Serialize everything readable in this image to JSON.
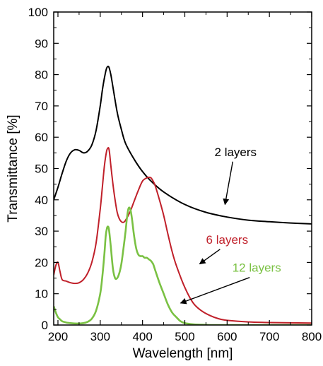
{
  "chart_data": {
    "type": "line",
    "xlabel": "Wavelength [nm]",
    "ylabel": "Transmittance [%]",
    "xlim": [
      190,
      800
    ],
    "ylim": [
      0,
      100
    ],
    "x_ticks": [
      200,
      300,
      400,
      500,
      600,
      700,
      800
    ],
    "y_ticks": [
      0,
      10,
      20,
      30,
      40,
      50,
      60,
      70,
      80,
      90,
      100
    ],
    "grid": false,
    "legend": "none",
    "series": [
      {
        "name": "2 layers",
        "color": "#000000",
        "label_at": [
          620,
          54
        ],
        "arrow_to": [
          595,
          38.5
        ],
        "x": [
          190,
          200,
          210,
          220,
          230,
          240,
          250,
          260,
          270,
          280,
          290,
          300,
          305,
          310,
          315,
          320,
          325,
          330,
          340,
          350,
          360,
          380,
          400,
          420,
          450,
          500,
          550,
          600,
          650,
          700,
          750,
          800
        ],
        "y": [
          40,
          44,
          48.5,
          52.5,
          55,
          56,
          55.8,
          55,
          55.5,
          57.5,
          62,
          70,
          75,
          79,
          82,
          82.5,
          80,
          76,
          68,
          62.5,
          58,
          53,
          49,
          46,
          42.5,
          38.5,
          36,
          34.5,
          33.5,
          33,
          32.6,
          32.3
        ]
      },
      {
        "name": "6 layers",
        "color": "#c0202a",
        "label_at": [
          600,
          26
        ],
        "arrow_to": [
          535,
          19.5
        ],
        "x": [
          190,
          195,
          200,
          205,
          210,
          220,
          230,
          240,
          250,
          260,
          270,
          280,
          290,
          300,
          305,
          310,
          315,
          318,
          320,
          322,
          325,
          330,
          335,
          340,
          345,
          350,
          355,
          360,
          370,
          380,
          390,
          400,
          410,
          415,
          420,
          425,
          430,
          440,
          450,
          460,
          470,
          480,
          500,
          520,
          540,
          560,
          580,
          600,
          650,
          700,
          750,
          800
        ],
        "y": [
          16,
          19,
          20,
          17,
          14.5,
          14,
          13.5,
          13.3,
          13.5,
          14.5,
          16.5,
          20,
          26,
          37,
          44,
          51,
          55.5,
          56.5,
          56.5,
          55,
          51,
          45,
          40,
          36,
          34,
          33,
          32.8,
          33.5,
          36,
          39.5,
          43,
          46,
          47,
          47.2,
          47,
          46,
          44.5,
          40,
          35,
          29,
          23.5,
          19,
          12,
          7,
          4.5,
          3,
          2,
          1.5,
          1,
          0.8,
          0.7,
          0.6
        ]
      },
      {
        "name": "12 layers",
        "color": "#7ac143",
        "label_at": [
          670,
          17
        ],
        "arrow_to": [
          490,
          7
        ],
        "x": [
          190,
          195,
          200,
          205,
          210,
          220,
          230,
          240,
          250,
          260,
          270,
          280,
          290,
          300,
          305,
          310,
          313,
          316,
          318,
          320,
          322,
          325,
          330,
          335,
          340,
          345,
          350,
          355,
          360,
          363,
          366,
          368,
          370,
          372,
          375,
          380,
          385,
          390,
          395,
          400,
          405,
          410,
          415,
          420,
          425,
          430,
          440,
          450,
          460,
          470,
          480,
          490,
          500,
          520,
          540,
          560,
          580,
          600,
          650,
          700,
          750,
          800
        ],
        "y": [
          6,
          4,
          2.5,
          1.8,
          1.2,
          0.8,
          0.6,
          0.5,
          0.5,
          0.6,
          1,
          2,
          4.5,
          10,
          15.5,
          23,
          28.5,
          31,
          31.5,
          31,
          29,
          25,
          18,
          15,
          15,
          16.5,
          19.5,
          24.5,
          30,
          34,
          36.8,
          37.5,
          37.3,
          36.5,
          34,
          28.5,
          24.5,
          22.5,
          22,
          22,
          21.5,
          21.5,
          21,
          20.5,
          19.5,
          17.5,
          13.5,
          10,
          6.5,
          4,
          2.5,
          1.2,
          0.6,
          0.2,
          0.1,
          0,
          0,
          0,
          0,
          0,
          0,
          0
        ]
      }
    ]
  }
}
